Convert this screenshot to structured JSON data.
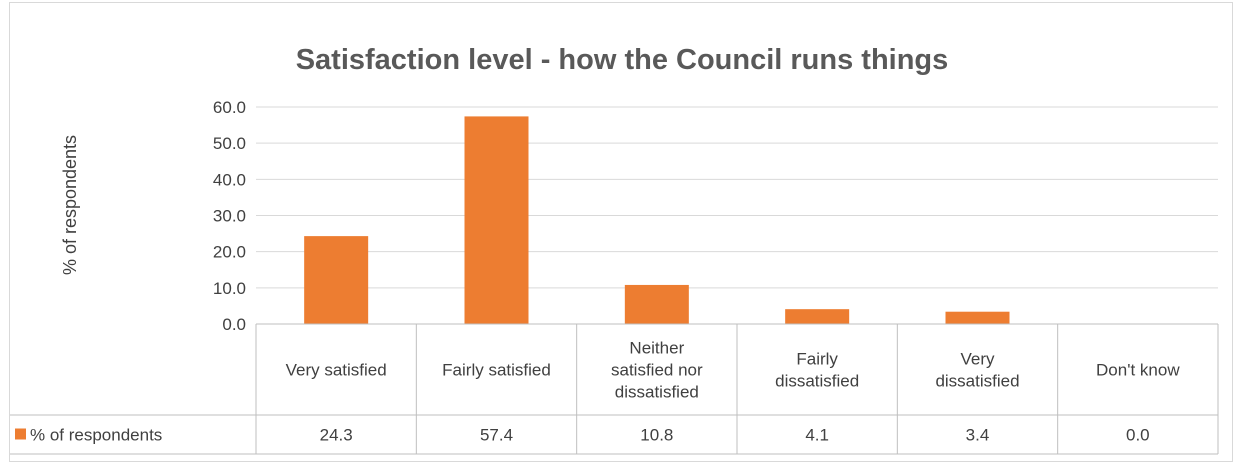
{
  "chart_data": {
    "type": "bar",
    "title": "Satisfaction level - how the Council runs things",
    "ylabel": "% of respondents",
    "xlabel": "",
    "ylim": [
      0,
      60
    ],
    "yticks": [
      "0.0",
      "10.0",
      "20.0",
      "30.0",
      "40.0",
      "50.0",
      "60.0"
    ],
    "grid": true,
    "categories": [
      [
        "Very satisfied"
      ],
      [
        "Fairly satisfied"
      ],
      [
        "Neither",
        "satisfied nor",
        "dissatisfied"
      ],
      [
        "Fairly",
        "dissatisfied"
      ],
      [
        "Very",
        "dissatisfied"
      ],
      [
        "Don't know"
      ]
    ],
    "series": [
      {
        "name": "% of respondents",
        "color": "#ed7d31",
        "values": [
          24.3,
          57.4,
          10.8,
          4.1,
          3.4,
          0.0
        ],
        "labels": [
          "24.3",
          "57.4",
          "10.8",
          "4.1",
          "3.4",
          "0.0"
        ]
      }
    ],
    "data_table": true,
    "legend": "data-table"
  }
}
